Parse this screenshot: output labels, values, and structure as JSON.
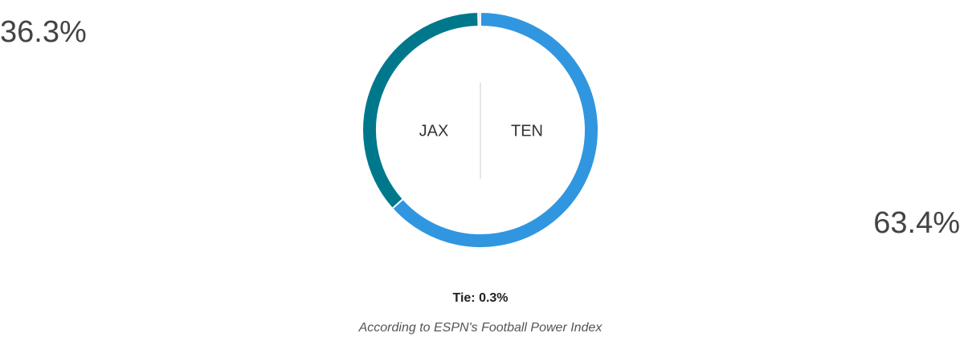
{
  "chart_data": {
    "type": "donut",
    "categories": [
      "JAX",
      "TEN",
      "Tie:"
    ],
    "values": [
      36.3,
      63.4,
      0.3
    ],
    "value_labels": [
      "36.3%",
      "63.4%",
      "0.3%"
    ],
    "colors": [
      "#00788c",
      "#3196e0",
      "#dcdcdc"
    ],
    "footnote": "According to ESPN's Football Power Index"
  }
}
